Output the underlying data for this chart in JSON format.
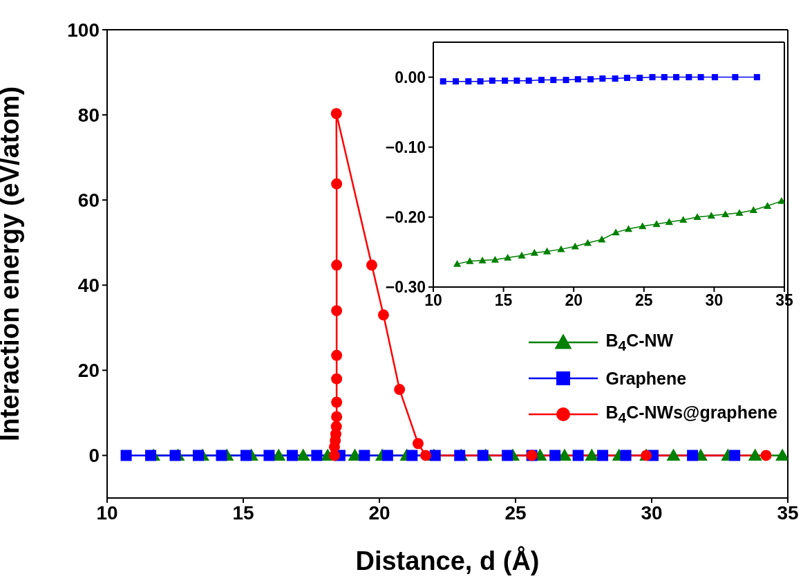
{
  "chart_data": [
    {
      "type": "line",
      "xlabel": "Distance, d (Å)",
      "ylabel": "Interaction energy (eV/atom)",
      "xlim": [
        10,
        35
      ],
      "xticks": [
        10,
        15,
        20,
        25,
        30,
        35
      ],
      "ylim": [
        -10,
        100
      ],
      "yticks": [
        0,
        20,
        40,
        60,
        80,
        100
      ],
      "legend": "bottom right",
      "series": [
        {
          "name": "B$_{4}$C-NW",
          "color": "#008000",
          "marker": "triangle",
          "x": [
            11.7,
            12.6,
            13.5,
            14.4,
            15.3,
            16.3,
            17.2,
            18.1,
            19.1,
            20.1,
            21.0,
            22.0,
            23.0,
            23.9,
            24.9,
            25.9,
            26.8,
            27.8,
            28.8,
            29.8,
            30.8,
            31.8,
            32.8,
            33.8,
            34.8
          ],
          "values": [
            0,
            0,
            0,
            0,
            0,
            0,
            0,
            0,
            0,
            0,
            0,
            0,
            0,
            0,
            0,
            0,
            0,
            0,
            0,
            0,
            0,
            0,
            0,
            0,
            0
          ]
        },
        {
          "name": "Graphene",
          "color": "#0000ff",
          "marker": "square",
          "x": [
            10.7,
            11.6,
            12.5,
            13.35,
            14.2,
            15.1,
            15.95,
            16.8,
            17.7,
            18.55,
            19.45,
            20.3,
            21.2,
            22.05,
            22.95,
            23.8,
            24.7,
            25.6,
            26.45,
            27.3,
            28.2,
            29.05,
            30.05,
            31.5,
            33.05
          ],
          "values": [
            0,
            0,
            0,
            0,
            0,
            0,
            0,
            0,
            0,
            0,
            0,
            0,
            0,
            0,
            0,
            0,
            0,
            0,
            0,
            0,
            0,
            0,
            0,
            0,
            0
          ]
        },
        {
          "name": "B$_{4}$C-NWs@graphene",
          "color": "#ff0000",
          "marker": "circle",
          "x": [
            18.35,
            18.35,
            18.38,
            18.4,
            18.42,
            18.43,
            18.43,
            18.43,
            18.43,
            18.43,
            18.43,
            18.43,
            18.42,
            19.72,
            20.15,
            20.74,
            21.42,
            21.7,
            25.6,
            29.8,
            34.2
          ],
          "values": [
            0,
            2,
            3.5,
            5,
            6.8,
            9.1,
            12.5,
            18,
            23.5,
            34,
            44.7,
            63.8,
            80.3,
            44.7,
            33,
            15.5,
            2.8,
            0,
            0,
            0,
            0
          ]
        }
      ]
    },
    {
      "type": "line",
      "xlim": [
        10,
        35
      ],
      "xticks": [
        10,
        15,
        20,
        25,
        30,
        35
      ],
      "ylim": [
        -0.3,
        0.05
      ],
      "yticks": [
        {
          "value": 0,
          "label": "0.00"
        },
        {
          "value": -0.1,
          "label": "−0.10"
        },
        {
          "value": -0.2,
          "label": "−0.20"
        },
        {
          "value": -0.3,
          "label": "−0.30"
        }
      ],
      "series": [
        {
          "color": "#008000",
          "marker": "triangle",
          "x": [
            11.7,
            12.6,
            13.5,
            14.4,
            15.3,
            16.3,
            17.2,
            18.1,
            19.1,
            20.1,
            21.0,
            22.0,
            23.0,
            23.9,
            24.9,
            25.9,
            26.8,
            27.8,
            28.8,
            29.8,
            30.8,
            31.8,
            32.8,
            33.8,
            34.8
          ],
          "values": [
            -0.267,
            -0.263,
            -0.262,
            -0.261,
            -0.258,
            -0.255,
            -0.251,
            -0.249,
            -0.246,
            -0.242,
            -0.237,
            -0.232,
            -0.222,
            -0.217,
            -0.213,
            -0.21,
            -0.207,
            -0.204,
            -0.2,
            -0.198,
            -0.196,
            -0.194,
            -0.19,
            -0.184,
            -0.177
          ]
        },
        {
          "color": "#0000ff",
          "marker": "square",
          "x": [
            10.7,
            11.6,
            12.5,
            13.35,
            14.2,
            15.1,
            15.95,
            16.8,
            17.7,
            18.55,
            19.45,
            20.3,
            21.2,
            22.05,
            22.95,
            23.8,
            24.7,
            25.6,
            26.45,
            27.3,
            28.2,
            29.05,
            30.05,
            31.5,
            33.05
          ],
          "values": [
            -0.006,
            -0.006,
            -0.006,
            -0.006,
            -0.005,
            -0.005,
            -0.005,
            -0.005,
            -0.004,
            -0.004,
            -0.004,
            -0.003,
            -0.003,
            -0.002,
            -0.002,
            -0.001,
            -0.001,
            0,
            0,
            0,
            0,
            0,
            0,
            0,
            0
          ]
        }
      ]
    }
  ]
}
